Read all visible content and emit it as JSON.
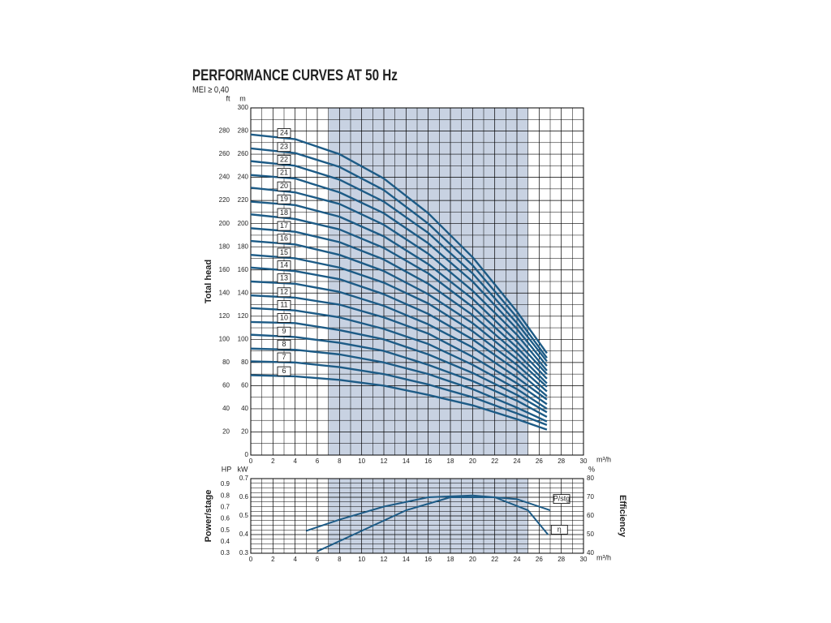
{
  "chart_data": [
    {
      "type": "line",
      "title": "PERFORMANCE CURVES AT 50 Hz",
      "subtitle": "MEI ≥ 0,40",
      "y_label": "Total head",
      "y_unit": "m",
      "y2_unit": "ft",
      "x_unit": "m³/h",
      "xlim": [
        0,
        30
      ],
      "xticks": [
        0,
        2,
        4,
        6,
        8,
        10,
        12,
        14,
        16,
        18,
        20,
        22,
        24,
        26,
        28,
        30
      ],
      "ylim": [
        0,
        300
      ],
      "yticks": [
        0,
        20,
        40,
        60,
        80,
        100,
        120,
        140,
        160,
        180,
        200,
        220,
        240,
        260,
        280,
        300
      ],
      "y2lim": [
        0,
        300
      ],
      "y2ticks": [
        20,
        40,
        60,
        80,
        100,
        120,
        140,
        160,
        180,
        200,
        220,
        240,
        260,
        280
      ],
      "grid": true,
      "highlight_xrange": [
        7,
        25
      ],
      "color": "#1d5b86",
      "x": [
        0,
        4,
        8,
        12,
        16,
        20,
        24,
        26.7
      ],
      "series": [
        {
          "name": "6",
          "values": [
            69,
            68,
            65,
            60,
            52,
            43,
            31,
            22
          ]
        },
        {
          "name": "7",
          "values": [
            81,
            80,
            76,
            70,
            61,
            50,
            36,
            26
          ]
        },
        {
          "name": "8",
          "values": [
            92,
            91,
            87,
            80,
            70,
            57,
            41,
            29
          ]
        },
        {
          "name": "9",
          "values": [
            104,
            102,
            97,
            90,
            78,
            64,
            47,
            33
          ]
        },
        {
          "name": "10",
          "values": [
            115,
            114,
            108,
            100,
            87,
            71,
            52,
            37
          ]
        },
        {
          "name": "11",
          "values": [
            127,
            125,
            119,
            109,
            96,
            78,
            57,
            40
          ]
        },
        {
          "name": "12",
          "values": [
            138,
            136,
            130,
            119,
            105,
            85,
            62,
            44
          ]
        },
        {
          "name": "13",
          "values": [
            150,
            148,
            141,
            129,
            113,
            93,
            67,
            48
          ]
        },
        {
          "name": "14",
          "values": [
            162,
            159,
            152,
            139,
            122,
            100,
            73,
            51
          ]
        },
        {
          "name": "15",
          "values": [
            173,
            170,
            162,
            149,
            131,
            107,
            78,
            55
          ]
        },
        {
          "name": "16",
          "values": [
            185,
            182,
            173,
            159,
            139,
            114,
            83,
            59
          ]
        },
        {
          "name": "17",
          "values": [
            196,
            193,
            184,
            169,
            148,
            121,
            88,
            62
          ]
        },
        {
          "name": "18",
          "values": [
            208,
            204,
            195,
            179,
            157,
            128,
            93,
            66
          ]
        },
        {
          "name": "19",
          "values": [
            219,
            216,
            206,
            189,
            165,
            135,
            98,
            70
          ]
        },
        {
          "name": "20",
          "values": [
            231,
            227,
            217,
            199,
            174,
            142,
            104,
            73
          ]
        },
        {
          "name": "21",
          "values": [
            242,
            239,
            227,
            209,
            183,
            150,
            109,
            77
          ]
        },
        {
          "name": "22",
          "values": [
            254,
            250,
            238,
            219,
            192,
            157,
            114,
            81
          ]
        },
        {
          "name": "23",
          "values": [
            265,
            261,
            249,
            229,
            200,
            164,
            119,
            84
          ]
        },
        {
          "name": "24",
          "values": [
            277,
            273,
            260,
            239,
            209,
            171,
            124,
            88
          ]
        }
      ]
    },
    {
      "type": "line",
      "y_label": "Power/stage",
      "y_unit": "kW",
      "hp_unit": "HP",
      "y2_unit": "%",
      "y2_label": "Efficiency",
      "x_unit": "m³/h",
      "xlim": [
        0,
        30
      ],
      "xticks": [
        0,
        2,
        4,
        6,
        8,
        10,
        12,
        14,
        16,
        18,
        20,
        22,
        24,
        26,
        28,
        30
      ],
      "ylim": [
        0.3,
        0.7
      ],
      "yticks": [
        0.3,
        0.4,
        0.5,
        0.6,
        0.7
      ],
      "hp_lim": [
        0.3,
        0.95
      ],
      "hp_ticks": [
        0.3,
        0.4,
        0.5,
        0.6,
        0.7,
        0.8,
        0.9
      ],
      "y2lim": [
        40,
        80
      ],
      "y2ticks": [
        40,
        50,
        60,
        70,
        80
      ],
      "grid": true,
      "highlight_xrange": [
        7,
        25
      ],
      "color": "#1d5b86",
      "series": [
        {
          "name": "P/stg",
          "axis": "y",
          "x": [
            5,
            8,
            12,
            16,
            20,
            24,
            27
          ],
          "values": [
            0.42,
            0.48,
            0.55,
            0.6,
            0.61,
            0.59,
            0.53
          ]
        },
        {
          "name": "η",
          "axis": "y2",
          "x": [
            6,
            10,
            14,
            18,
            22,
            25,
            26.8
          ],
          "values": [
            41,
            52,
            63,
            70,
            70,
            63,
            50
          ]
        }
      ]
    }
  ]
}
